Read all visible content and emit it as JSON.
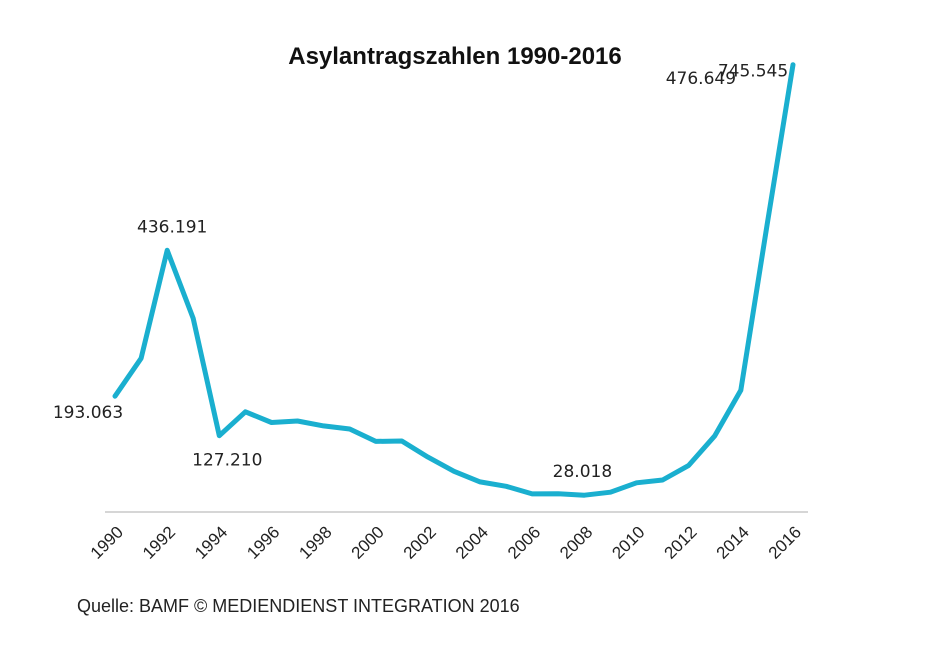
{
  "chart_data": {
    "type": "line",
    "title": "Asylantragszahlen 1990-2016",
    "xlabel": "",
    "ylabel": "",
    "color": "#1AAFCF",
    "tick_labels": [
      "1990",
      "1992",
      "1994",
      "1996",
      "1998",
      "2000",
      "2002",
      "2004",
      "2006",
      "2008",
      "2010",
      "2012",
      "2014",
      "2016"
    ],
    "x": [
      1990,
      1991,
      1992,
      1993,
      1994,
      1995,
      1996,
      1997,
      1998,
      1999,
      2000,
      2001,
      2002,
      2003,
      2004,
      2005,
      2006,
      2007,
      2008,
      2009,
      2010,
      2011,
      2012,
      2013,
      2014,
      2015,
      2016
    ],
    "values": [
      193063,
      256112,
      436191,
      322599,
      127210,
      166951,
      149193,
      151700,
      143429,
      138319,
      117648,
      118306,
      91471,
      67848,
      50152,
      42908,
      30100,
      30303,
      28018,
      33033,
      48589,
      53347,
      77651,
      127023,
      202834,
      476649,
      745545
    ],
    "ylim": [
      0,
      800000
    ],
    "data_labels": [
      {
        "year": 1990,
        "text": "193.063"
      },
      {
        "year": 1992,
        "text": "436.191"
      },
      {
        "year": 1994,
        "text": "127.210"
      },
      {
        "year": 2008,
        "text": "28.018"
      },
      {
        "year": 2015,
        "text": "476.649"
      },
      {
        "year": 2016,
        "text": "745.545"
      }
    ]
  },
  "source": "Quelle: BAMF © MEDIENDIENST INTEGRATION 2016"
}
